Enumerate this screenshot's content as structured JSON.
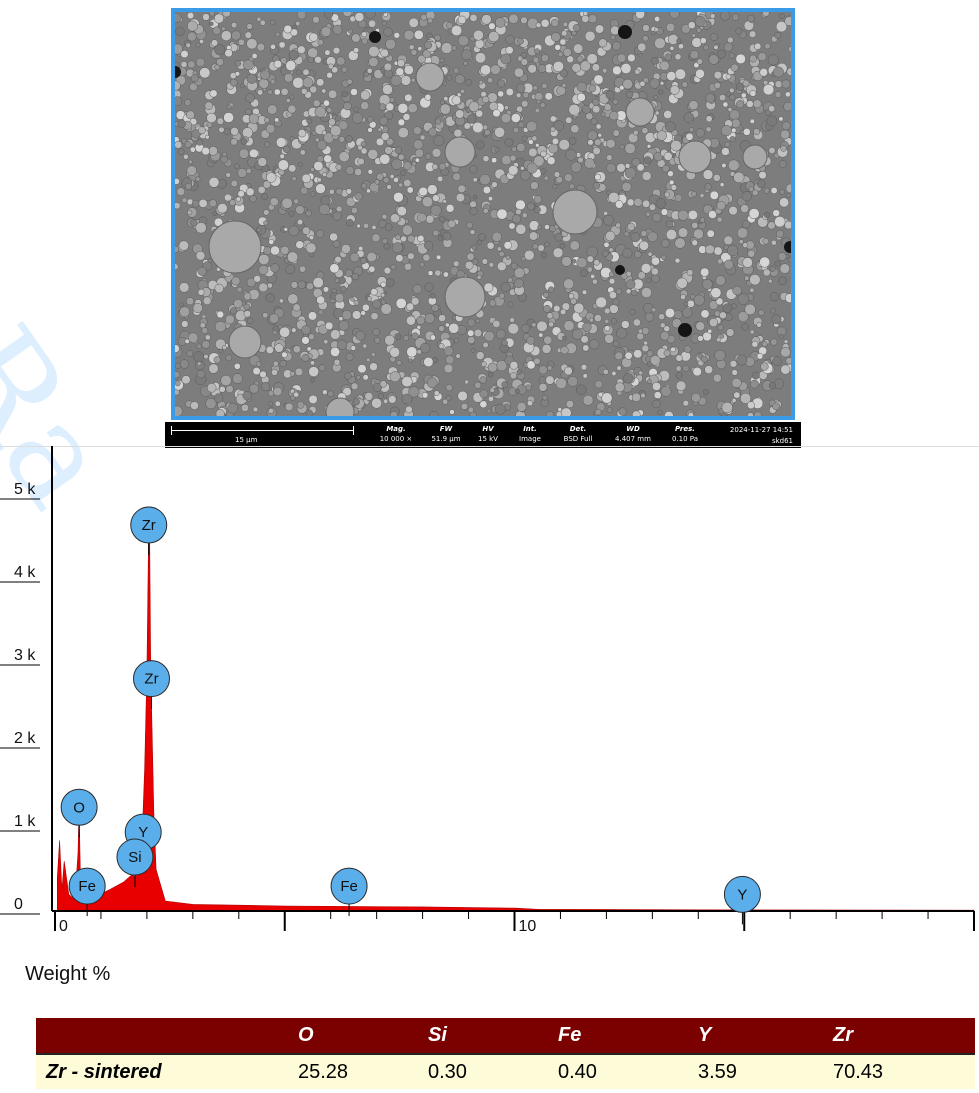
{
  "micrograph": {
    "scale_bar": "15 µm",
    "metadata": [
      {
        "label": "Mag.",
        "value": "10 000 ×"
      },
      {
        "label": "FW",
        "value": "51.9 µm"
      },
      {
        "label": "HV",
        "value": "15 kV"
      },
      {
        "label": "Int.",
        "value": "Image"
      },
      {
        "label": "Det.",
        "value": "BSD Full"
      },
      {
        "label": "WD",
        "value": "4.407 mm"
      },
      {
        "label": "Pres.",
        "value": "0.10 Pa"
      }
    ],
    "timestamp": "2024-11-27 14:51",
    "sample": "skd61"
  },
  "watermark": "Ra",
  "chart_data": {
    "type": "area",
    "title": "",
    "xlabel": "",
    "ylabel": "",
    "xlim": [
      0,
      20
    ],
    "ylim": [
      0,
      5000
    ],
    "y_ticks": [
      "0",
      "1 k",
      "2 k",
      "3 k",
      "4 k",
      "5 k"
    ],
    "x_ticks": [
      "0",
      "10"
    ],
    "fill_color": "#e80000",
    "marker_color": "#5aaeea",
    "series": [
      {
        "x": [
          0.05,
          0.1,
          0.15,
          0.2,
          0.3,
          0.4,
          0.45,
          0.5,
          0.525,
          0.55,
          0.6,
          0.7,
          0.9,
          1.2,
          1.5,
          1.7,
          1.74,
          1.8,
          1.9,
          1.95,
          2.0,
          2.04,
          2.06,
          2.08,
          2.1,
          2.15,
          2.2,
          2.4,
          3,
          5,
          8,
          10,
          10.5,
          14,
          20
        ],
        "y": [
          400,
          850,
          250,
          600,
          200,
          150,
          280,
          700,
          1250,
          500,
          120,
          100,
          180,
          260,
          350,
          450,
          380,
          650,
          950,
          1700,
          2900,
          4650,
          4450,
          3100,
          2500,
          1200,
          500,
          120,
          80,
          60,
          50,
          35,
          20,
          15,
          10
        ]
      }
    ],
    "peak_labels": [
      {
        "element": "Zr",
        "energy": 2.04,
        "counts": 4650
      },
      {
        "element": "Zr",
        "energy": 2.1,
        "counts": 2800
      },
      {
        "element": "O",
        "energy": 0.525,
        "counts": 1250
      },
      {
        "element": "Y",
        "energy": 1.92,
        "counts": 950
      },
      {
        "element": "Si",
        "energy": 1.74,
        "counts": 650
      },
      {
        "element": "Fe",
        "energy": 0.7,
        "counts": 300
      },
      {
        "element": "Fe",
        "energy": 6.4,
        "counts": 300
      },
      {
        "element": "Y",
        "energy": 14.96,
        "counts": 200
      }
    ]
  },
  "weight": {
    "title": "Weight %",
    "headers": [
      "",
      "O",
      "Si",
      "Fe",
      "Y",
      "Zr"
    ],
    "rows": [
      {
        "name": "Zr - sintered",
        "values": [
          "25.28",
          "0.30",
          "0.40",
          "3.59",
          "70.43"
        ]
      }
    ]
  }
}
